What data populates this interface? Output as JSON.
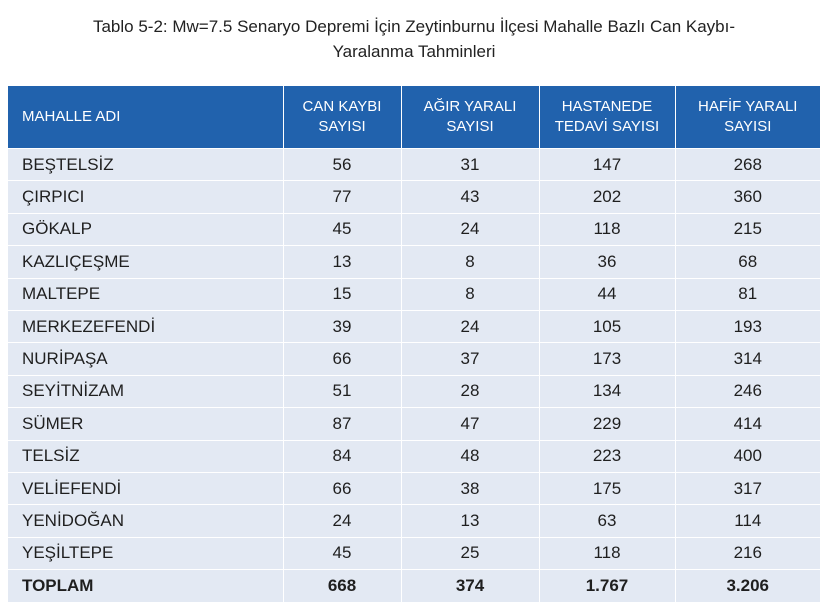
{
  "caption": {
    "line1": "Tablo 5-2: Mw=7.5 Senaryo Depremi İçin Zeytinburnu İlçesi Mahalle Bazlı Can Kaybı-",
    "line2": "Yaralanma Tahminleri"
  },
  "colors": {
    "header_bg": "#2162ad",
    "row_bg": "#e3e9f3"
  },
  "table": {
    "headers": [
      [
        "MAHALLE ADI"
      ],
      [
        "CAN KAYBI",
        "SAYISI"
      ],
      [
        "AĞIR YARALI",
        "SAYISI"
      ],
      [
        "HASTANEDE",
        "TEDAVİ SAYISI"
      ],
      [
        "HAFİF YARALI",
        "SAYISI"
      ]
    ],
    "rows": [
      [
        "BEŞTELSİZ",
        "56",
        "31",
        "147",
        "268"
      ],
      [
        "ÇIRPICI",
        "77",
        "43",
        "202",
        "360"
      ],
      [
        "GÖKALP",
        "45",
        "24",
        "118",
        "215"
      ],
      [
        "KAZLIÇEŞME",
        "13",
        "8",
        "36",
        "68"
      ],
      [
        "MALTEPE",
        "15",
        "8",
        "44",
        "81"
      ],
      [
        "MERKEZEFENDİ",
        "39",
        "24",
        "105",
        "193"
      ],
      [
        "NURİPAŞA",
        "66",
        "37",
        "173",
        "314"
      ],
      [
        "SEYİTNİZAM",
        "51",
        "28",
        "134",
        "246"
      ],
      [
        "SÜMER",
        "87",
        "47",
        "229",
        "414"
      ],
      [
        "TELSİZ",
        "84",
        "48",
        "223",
        "400"
      ],
      [
        "VELİEFENDİ",
        "66",
        "38",
        "175",
        "317"
      ],
      [
        "YENİDOĞAN",
        "24",
        "13",
        "63",
        "114"
      ],
      [
        "YEŞİLTEPE",
        "45",
        "25",
        "118",
        "216"
      ]
    ],
    "total": [
      "TOPLAM",
      "668",
      "374",
      "1.767",
      "3.206"
    ]
  }
}
